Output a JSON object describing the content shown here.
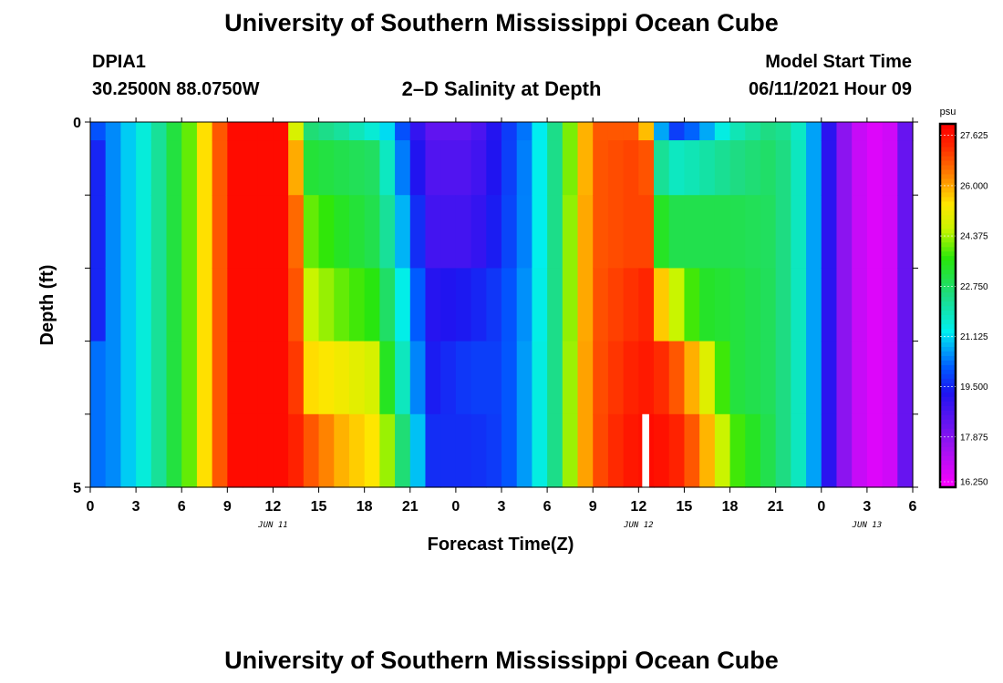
{
  "header": {
    "title_top": "University of Southern Mississippi Ocean Cube",
    "title_bottom": "University of Southern Mississippi Ocean Cube",
    "station_id": "DPIA1",
    "station_coords": "30.2500N  88.0750W",
    "plot_title": "2–D Salinity at Depth",
    "model_start_label": "Model Start Time",
    "model_start_value": "06/11/2021 Hour 09"
  },
  "chart_data": {
    "type": "heatmap",
    "title": "2–D Salinity at Depth",
    "xlabel": "Forecast Time(Z)",
    "ylabel": "Depth (ft)",
    "x_range_hours": [
      0,
      54
    ],
    "x_ticks": [
      {
        "h": 0,
        "label": "0"
      },
      {
        "h": 3,
        "label": "3"
      },
      {
        "h": 6,
        "label": "6"
      },
      {
        "h": 9,
        "label": "9"
      },
      {
        "h": 12,
        "label": "12"
      },
      {
        "h": 15,
        "label": "15"
      },
      {
        "h": 18,
        "label": "18"
      },
      {
        "h": 21,
        "label": "21"
      },
      {
        "h": 24,
        "label": "0"
      },
      {
        "h": 27,
        "label": "3"
      },
      {
        "h": 30,
        "label": "6"
      },
      {
        "h": 33,
        "label": "9"
      },
      {
        "h": 36,
        "label": "12"
      },
      {
        "h": 39,
        "label": "15"
      },
      {
        "h": 42,
        "label": "18"
      },
      {
        "h": 45,
        "label": "21"
      },
      {
        "h": 48,
        "label": "0"
      },
      {
        "h": 51,
        "label": "3"
      },
      {
        "h": 54,
        "label": "6"
      }
    ],
    "date_labels": [
      {
        "h": 12,
        "label": "JUN 11"
      },
      {
        "h": 36,
        "label": "JUN 12"
      },
      {
        "h": 51,
        "label": "JUN 13"
      }
    ],
    "ylim": [
      0,
      5
    ],
    "y_tick_labels": [
      {
        "v": 0,
        "label": "0"
      },
      {
        "v": 5,
        "label": "5"
      }
    ],
    "y_minor_ticks": [
      1,
      2,
      3,
      4
    ],
    "depth_bins": [
      0,
      0.5,
      1.5,
      2.5,
      3.5,
      4.5
    ],
    "colorbar": {
      "unit": "psu",
      "min": 16.25,
      "max": 28.0,
      "tick_values": [
        27.625,
        26.0,
        24.375,
        22.75,
        21.125,
        19.5,
        17.875,
        16.25
      ],
      "tick_labels": [
        "27.625",
        "26.000",
        "24.375",
        "22.750",
        "21.125",
        "19.500",
        "17.875",
        "16.250"
      ]
    },
    "profiles": [
      {
        "h": 0,
        "v": [
          19.8,
          19.0,
          19.0,
          19.0,
          20.2,
          20.2
        ]
      },
      {
        "h": 1.5,
        "v": [
          20.5,
          20.5,
          20.5,
          20.5,
          20.5,
          20.5
        ]
      },
      {
        "h": 4,
        "v": [
          21.8,
          21.8,
          21.8,
          21.8,
          21.8,
          21.8
        ]
      },
      {
        "h": 6.5,
        "v": [
          24.0,
          24.0,
          24.0,
          24.0,
          24.0,
          24.0
        ]
      },
      {
        "h": 8.2,
        "v": [
          26.5,
          26.5,
          26.5,
          26.5,
          26.5,
          26.5
        ]
      },
      {
        "h": 9.5,
        "v": [
          27.8,
          27.8,
          27.8,
          27.8,
          27.8,
          27.8
        ]
      },
      {
        "h": 12.5,
        "v": [
          27.8,
          27.8,
          27.8,
          27.8,
          27.8,
          27.8
        ]
      },
      {
        "h": 13.2,
        "v": [
          25.5,
          26.8,
          27.4,
          27.5,
          27.6,
          27.6
        ]
      },
      {
        "h": 14.5,
        "v": [
          22.6,
          23.2,
          24.0,
          24.6,
          25.5,
          26.8
        ]
      },
      {
        "h": 16.5,
        "v": [
          22.2,
          23.0,
          23.4,
          24.0,
          25.2,
          25.9
        ]
      },
      {
        "h": 18.5,
        "v": [
          21.6,
          22.8,
          23.0,
          23.6,
          24.8,
          25.4
        ]
      },
      {
        "h": 19.8,
        "v": [
          21.0,
          21.5,
          22.0,
          22.5,
          23.0,
          24.0
        ]
      },
      {
        "h": 21.0,
        "v": [
          19.3,
          19.6,
          20.0,
          20.6,
          21.0,
          21.6
        ]
      },
      {
        "h": 22.5,
        "v": [
          18.4,
          18.6,
          18.8,
          19.2,
          19.4,
          19.6
        ]
      },
      {
        "h": 25.0,
        "v": [
          18.4,
          18.6,
          18.8,
          19.4,
          19.8,
          19.6
        ]
      },
      {
        "h": 27.0,
        "v": [
          19.5,
          19.5,
          19.6,
          19.8,
          19.8,
          19.8
        ]
      },
      {
        "h": 28.8,
        "v": [
          20.5,
          20.6,
          20.6,
          20.7,
          20.8,
          20.8
        ]
      },
      {
        "h": 30.5,
        "v": [
          22.4,
          22.4,
          22.4,
          22.4,
          22.4,
          22.4
        ]
      },
      {
        "h": 32.0,
        "v": [
          25.0,
          25.0,
          25.2,
          25.2,
          25.3,
          25.3
        ]
      },
      {
        "h": 33.0,
        "v": [
          26.8,
          26.8,
          26.8,
          26.8,
          26.8,
          26.8
        ]
      },
      {
        "h": 35.5,
        "v": [
          26.8,
          27.0,
          27.0,
          27.2,
          27.4,
          27.6
        ]
      },
      {
        "h": 36.8,
        "v": [
          25.5,
          26.8,
          27.0,
          27.4,
          27.6,
          27.8
        ]
      },
      {
        "h": 37.2,
        "v": [
          21.0,
          22.4,
          23.5,
          26.0,
          27.4,
          27.8
        ]
      },
      {
        "h": 38.5,
        "v": [
          19.8,
          21.8,
          23.0,
          24.6,
          26.8,
          27.4
        ]
      },
      {
        "h": 40.0,
        "v": [
          20.4,
          22.0,
          23.0,
          23.4,
          25.5,
          26.5
        ]
      },
      {
        "h": 42.0,
        "v": [
          21.8,
          22.4,
          23.0,
          23.2,
          23.2,
          24.0
        ]
      },
      {
        "h": 45.0,
        "v": [
          22.6,
          22.8,
          22.8,
          22.8,
          22.8,
          22.8
        ]
      },
      {
        "h": 47.0,
        "v": [
          21.5,
          21.5,
          21.5,
          21.5,
          21.5,
          21.5
        ]
      },
      {
        "h": 48.3,
        "v": [
          19.4,
          19.4,
          19.4,
          19.4,
          19.4,
          19.4
        ]
      },
      {
        "h": 49.5,
        "v": [
          17.8,
          17.8,
          17.8,
          17.8,
          17.8,
          17.8
        ]
      },
      {
        "h": 51.0,
        "v": [
          16.6,
          16.6,
          16.6,
          16.6,
          16.6,
          16.6
        ]
      },
      {
        "h": 53.0,
        "v": [
          17.0,
          17.0,
          17.0,
          17.0,
          17.0,
          17.0
        ]
      },
      {
        "h": 54.0,
        "v": [
          19.6,
          19.6,
          19.6,
          19.6,
          19.6,
          19.6
        ]
      }
    ],
    "missing_cells": [
      {
        "h": 36,
        "depth_bin": 5
      }
    ]
  }
}
